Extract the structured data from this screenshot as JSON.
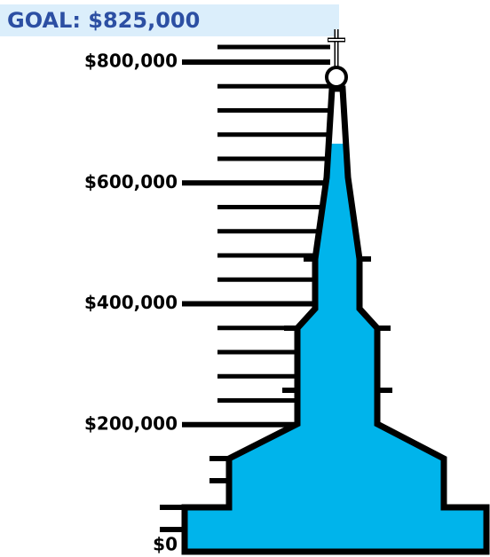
{
  "chart_data": {
    "type": "steeple-gauge",
    "title": "GOAL: $825,000",
    "value": 665000,
    "color": "#00b4eb",
    "ylim": [
      0,
      825000
    ],
    "yticks": [
      {
        "value": 0,
        "label": "$0"
      },
      {
        "value": 200000,
        "label": "$200,000"
      },
      {
        "value": 400000,
        "label": "$400,000"
      },
      {
        "value": 600000,
        "label": "$600,000"
      },
      {
        "value": 800000,
        "label": "$800,000"
      }
    ],
    "minor_yticks": [
      240000,
      280000,
      320000,
      360000,
      440000,
      480000,
      520000,
      560000,
      640000,
      680000,
      720000,
      760000,
      825000
    ]
  }
}
